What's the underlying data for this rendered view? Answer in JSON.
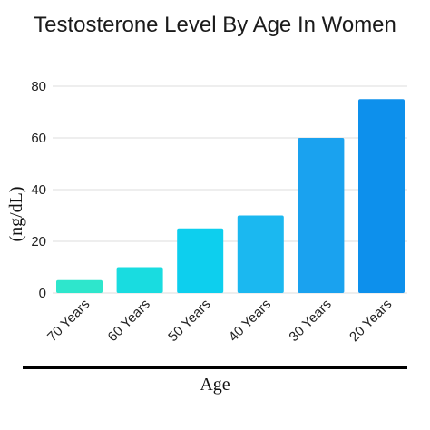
{
  "chart_data": {
    "type": "bar",
    "title": "Testosterone Level By Age In Women",
    "xlabel": "Age",
    "ylabel": "(ng/dL)",
    "categories": [
      "70 Years",
      "60 Years",
      "50 Years",
      "40 Years",
      "30 Years",
      "20 Years"
    ],
    "values": [
      5,
      10,
      25,
      30,
      60,
      75
    ],
    "ylim": [
      0,
      80
    ],
    "yticks": [
      0,
      20,
      40,
      60,
      80
    ],
    "grid": true,
    "bar_colors": [
      "#2ee6cc",
      "#19dce0",
      "#0dcfee",
      "#1bb8f0",
      "#1aa2ef",
      "#0d90ec"
    ],
    "grid_color": "#dddddd",
    "baseline_color": "#000000"
  }
}
